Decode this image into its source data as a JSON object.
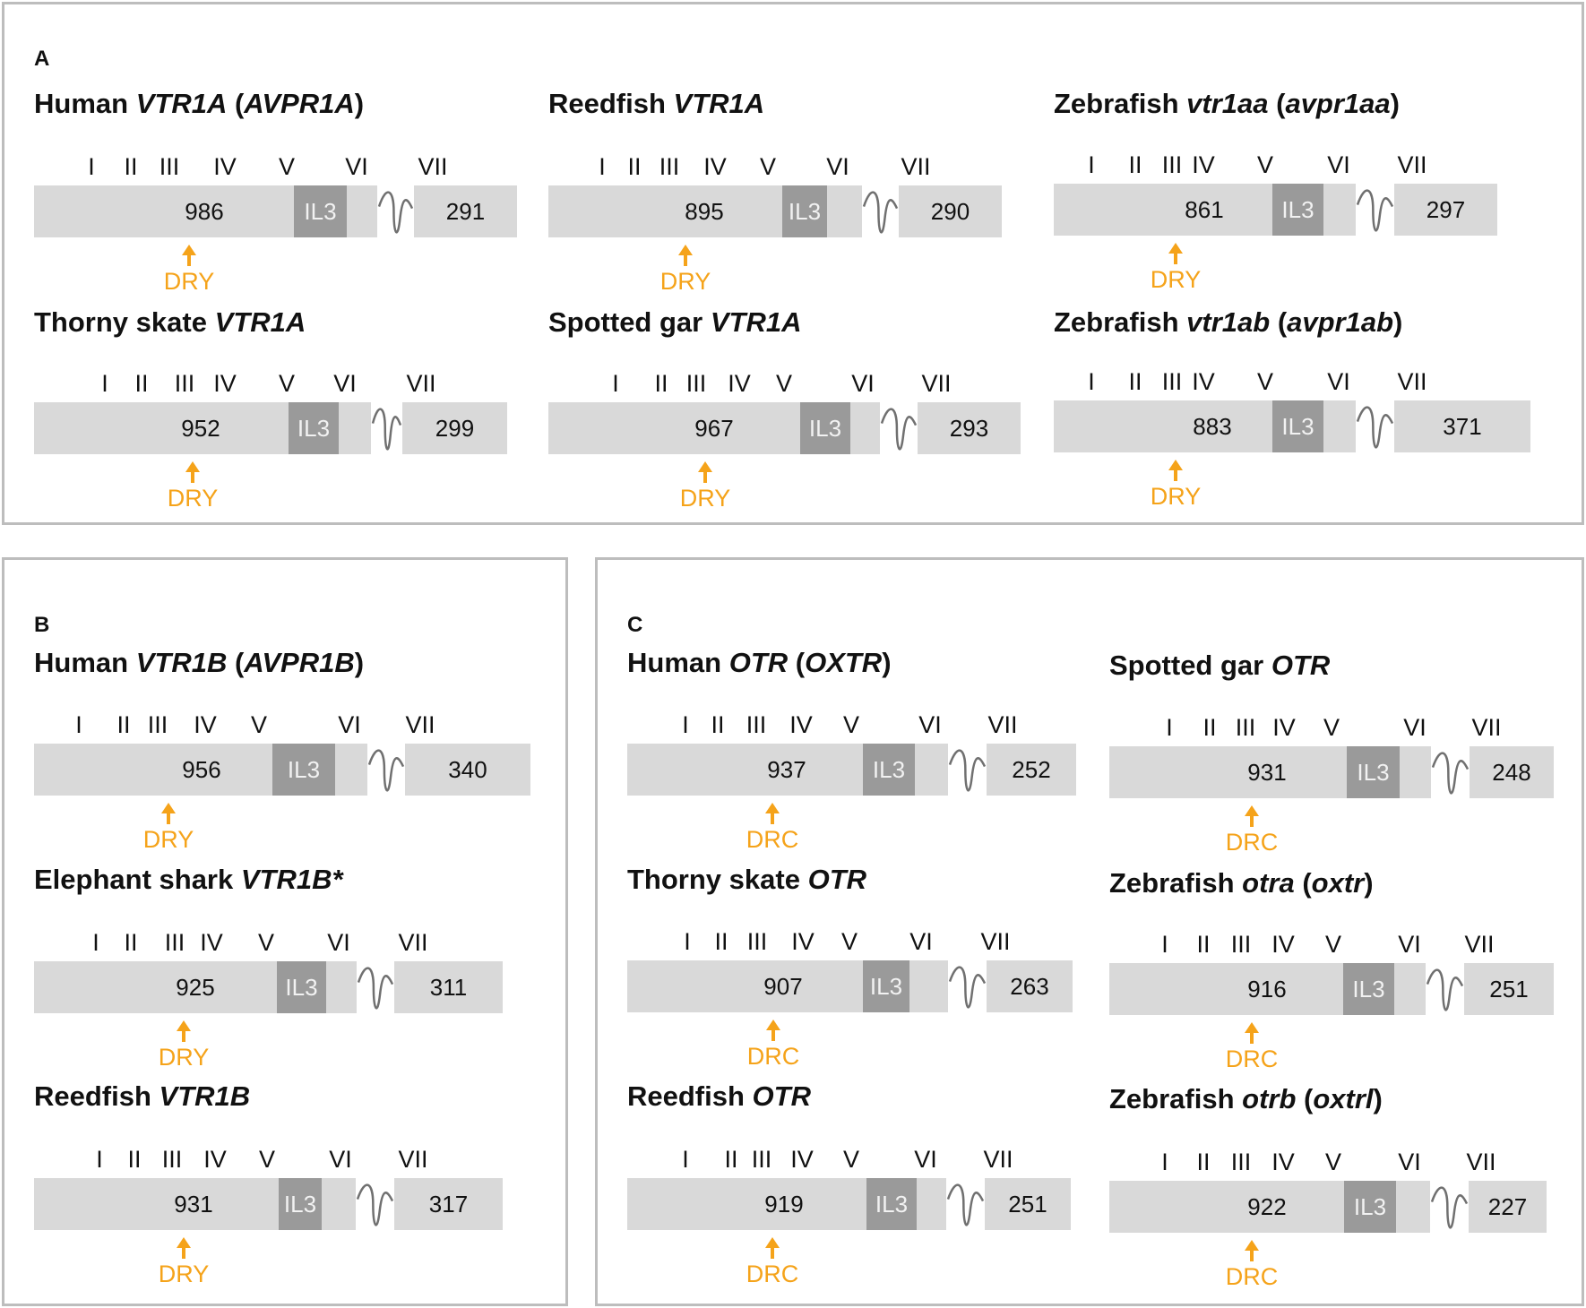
{
  "colors": {
    "exon": "#d9d9d9",
    "il3": "#9a9a9a",
    "motif": "#f5a31a",
    "intron": "#707070",
    "border": "#bdbdbd"
  },
  "tm_labels": [
    "I",
    "II",
    "III",
    "IV",
    "V",
    "VI",
    "VII"
  ],
  "il3_label": "IL3",
  "panels": [
    {
      "letter": "A",
      "genes": [
        {
          "species": "Human",
          "gene": "VTR1A",
          "alias": "AVPR1A",
          "exon1_length": "986",
          "exon2_length": "291",
          "motif": "DRY"
        },
        {
          "species": "Reedfish",
          "gene": "VTR1A",
          "alias": "",
          "exon1_length": "895",
          "exon2_length": "290",
          "motif": "DRY"
        },
        {
          "species": "Zebrafish",
          "gene": "vtr1aa",
          "alias": "avpr1aa",
          "exon1_length": "861",
          "exon2_length": "297",
          "motif": "DRY"
        },
        {
          "species": "Thorny skate",
          "gene": "VTR1A",
          "alias": "",
          "exon1_length": "952",
          "exon2_length": "299",
          "motif": "DRY"
        },
        {
          "species": "Spotted gar",
          "gene": "VTR1A",
          "alias": "",
          "exon1_length": "967",
          "exon2_length": "293",
          "motif": "DRY"
        },
        {
          "species": "Zebrafish",
          "gene": "vtr1ab",
          "alias": "avpr1ab",
          "exon1_length": "883",
          "exon2_length": "371",
          "motif": "DRY"
        }
      ]
    },
    {
      "letter": "B",
      "genes": [
        {
          "species": "Human",
          "gene": "VTR1B",
          "alias": "AVPR1B",
          "exon1_length": "956",
          "exon2_length": "340",
          "motif": "DRY"
        },
        {
          "species": "Elephant shark",
          "gene": "VTR1B*",
          "alias": "",
          "exon1_length": "925",
          "exon2_length": "311",
          "motif": "DRY"
        },
        {
          "species": "Reedfish",
          "gene": "VTR1B",
          "alias": "",
          "exon1_length": "931",
          "exon2_length": "317",
          "motif": "DRY"
        }
      ]
    },
    {
      "letter": "C",
      "genes": [
        {
          "species": "Human",
          "gene": "OTR",
          "alias": "OXTR",
          "exon1_length": "937",
          "exon2_length": "252",
          "motif": "DRC"
        },
        {
          "species": "Spotted gar",
          "gene": "OTR",
          "alias": "",
          "exon1_length": "931",
          "exon2_length": "248",
          "motif": "DRC"
        },
        {
          "species": "Thorny skate",
          "gene": "OTR",
          "alias": "",
          "exon1_length": "907",
          "exon2_length": "263",
          "motif": "DRC"
        },
        {
          "species": "Zebrafish",
          "gene": "otra",
          "alias": "oxtr",
          "exon1_length": "916",
          "exon2_length": "251",
          "motif": "DRC"
        },
        {
          "species": "Reedfish",
          "gene": "OTR",
          "alias": "",
          "exon1_length": "919",
          "exon2_length": "251",
          "motif": "DRC"
        },
        {
          "species": "Zebrafish",
          "gene": "otrb",
          "alias": "oxtrl",
          "exon1_length": "922",
          "exon2_length": "227",
          "motif": "DRC"
        }
      ]
    }
  ]
}
